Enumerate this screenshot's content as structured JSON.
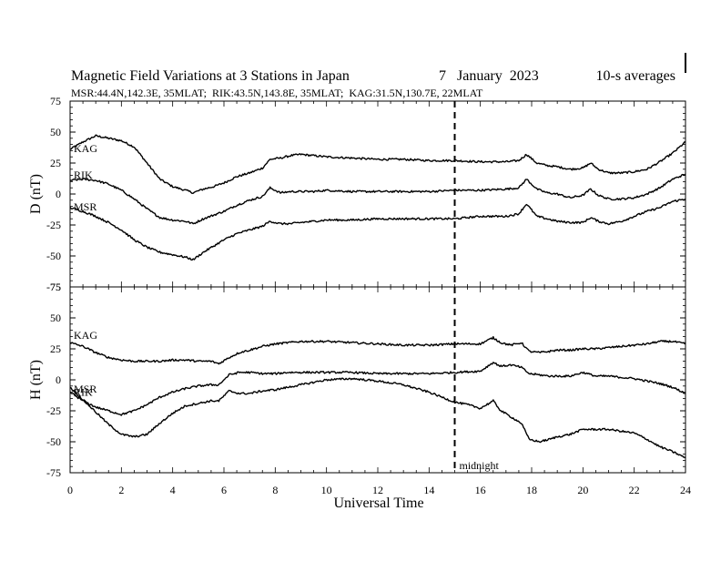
{
  "chart_data": {
    "type": "line",
    "title": "Magnetic Field Variations at 3 Stations in Japan",
    "date": "7   January  2023",
    "averaging": "10-s averages",
    "subtitle": "MSR:44.4N,142.3E, 35MLAT;  RIK:43.5N,143.8E, 35MLAT;  KAG:31.5N,130.7E, 22MLAT",
    "xlabel": "Universal Time",
    "xlim": [
      0,
      24
    ],
    "xticks": [
      "0",
      "2",
      "4",
      "6",
      "8",
      "10",
      "12",
      "14",
      "16",
      "18",
      "20",
      "22",
      "24"
    ],
    "midnight": {
      "x": 15,
      "label": "midnight"
    },
    "panels": [
      {
        "id": "D",
        "ylabel": "D (nT)",
        "ylim": [
          -75,
          75
        ],
        "yticks": [
          "75",
          "50",
          "25",
          "0",
          "-25",
          "-50",
          "-75"
        ],
        "series": [
          {
            "name": "KAG",
            "x": [
              0,
              0.5,
              1,
              1.5,
              2,
              2.5,
              3,
              3.5,
              4,
              4.5,
              4.8,
              5.2,
              5.6,
              6,
              6.5,
              7,
              7.5,
              7.8,
              8.2,
              8.6,
              9,
              9.5,
              10,
              11,
              12,
              13,
              14,
              15,
              16,
              17,
              17.5,
              17.8,
              18.2,
              18.6,
              19,
              19.5,
              20,
              20.3,
              20.6,
              21,
              21.5,
              22,
              22.5,
              23,
              23.5,
              24
            ],
            "y": [
              36,
              42,
              47,
              45,
              43,
              38,
              25,
              12,
              6,
              3,
              1,
              4,
              6,
              9,
              14,
              17,
              21,
              28,
              29,
              31,
              32,
              31,
              30,
              29,
              28,
              28,
              27,
              27,
              26,
              26,
              27,
              32,
              25,
              23,
              22,
              20,
              21,
              25,
              20,
              17,
              17,
              18,
              20,
              26,
              33,
              42
            ]
          },
          {
            "name": "RIK",
            "x": [
              0,
              0.5,
              1,
              1.5,
              2,
              2.5,
              3,
              3.5,
              4,
              4.5,
              4.8,
              5.2,
              5.6,
              6,
              6.5,
              7,
              7.5,
              7.8,
              8.2,
              8.6,
              9,
              9.5,
              10,
              11,
              12,
              13,
              14,
              15,
              16,
              17,
              17.5,
              17.8,
              18.2,
              18.6,
              19,
              19.5,
              20,
              20.3,
              20.6,
              21,
              21.5,
              22,
              22.5,
              23,
              23.5,
              24
            ],
            "y": [
              11,
              12,
              11,
              8,
              3,
              -4,
              -12,
              -19,
              -21,
              -22,
              -24,
              -20,
              -17,
              -14,
              -9,
              -5,
              -2,
              5,
              1,
              2,
              2,
              2,
              3,
              2,
              2,
              2,
              2,
              3,
              3,
              4,
              5,
              12,
              4,
              1,
              0,
              -3,
              -1,
              4,
              -1,
              -4,
              -4,
              -3,
              0,
              5,
              12,
              16
            ]
          },
          {
            "name": "MSR",
            "x": [
              0,
              0.5,
              1,
              1.5,
              2,
              2.5,
              3,
              3.5,
              4,
              4.5,
              4.8,
              5.2,
              5.6,
              6,
              6.5,
              7,
              7.5,
              7.8,
              8.2,
              8.6,
              9,
              9.5,
              10,
              11,
              12,
              13,
              14,
              15,
              16,
              17,
              17.5,
              17.8,
              18.2,
              18.6,
              19,
              19.5,
              20,
              20.3,
              20.6,
              21,
              21.5,
              22,
              22.5,
              23,
              23.5,
              24
            ],
            "y": [
              -11,
              -14,
              -18,
              -23,
              -29,
              -37,
              -43,
              -47,
              -49,
              -51,
              -53,
              -47,
              -42,
              -37,
              -32,
              -29,
              -26,
              -22,
              -24,
              -24,
              -23,
              -22,
              -21,
              -21,
              -20,
              -20,
              -20,
              -20,
              -18,
              -18,
              -16,
              -8,
              -18,
              -20,
              -22,
              -23,
              -23,
              -19,
              -22,
              -24,
              -22,
              -18,
              -14,
              -11,
              -6,
              -4
            ]
          }
        ]
      },
      {
        "id": "H",
        "ylabel": "H (nT)",
        "ylim": [
          -75,
          75
        ],
        "yticks": [
          "75",
          "50",
          "25",
          "0",
          "-25",
          "-50",
          "-75"
        ],
        "series": [
          {
            "name": "KAG",
            "x": [
              0,
              0.5,
              1,
              1.5,
              2,
              2.5,
              3,
              3.5,
              4,
              4.5,
              5,
              5.5,
              5.8,
              6.2,
              6.6,
              7,
              7.5,
              8,
              8.5,
              9,
              10,
              11,
              12,
              13,
              14,
              15,
              16,
              16.5,
              16.8,
              17.2,
              17.6,
              17.9,
              18.3,
              18.7,
              19,
              19.5,
              20,
              20.5,
              21,
              22,
              22.5,
              23,
              23.5,
              24
            ],
            "y": [
              30,
              27,
              22,
              18,
              16,
              15,
              15,
              15,
              16,
              16,
              15,
              15,
              13,
              18,
              22,
              24,
              27,
              29,
              30,
              31,
              31,
              30,
              29,
              28,
              28,
              29,
              29,
              34,
              30,
              28,
              30,
              23,
              22,
              23,
              24,
              24,
              25,
              25,
              26,
              28,
              29,
              31,
              31,
              29
            ]
          },
          {
            "name": "RIK",
            "x": [
              0,
              0.5,
              1,
              1.5,
              2,
              2.5,
              3,
              3.5,
              4,
              4.5,
              5,
              5.5,
              5.8,
              6.2,
              6.6,
              7,
              7.5,
              8,
              8.5,
              9,
              10,
              11,
              12,
              13,
              14,
              15,
              16,
              16.5,
              16.8,
              17.2,
              17.6,
              17.9,
              18.3,
              18.7,
              19,
              19.5,
              20,
              20.5,
              21,
              22,
              22.5,
              23,
              23.5,
              24
            ],
            "y": [
              -10,
              -17,
              -22,
              -25,
              -28,
              -25,
              -20,
              -14,
              -10,
              -7,
              -5,
              -4,
              -4,
              4,
              6,
              6,
              5,
              5,
              6,
              6,
              6,
              6,
              5,
              5,
              5,
              6,
              7,
              14,
              11,
              12,
              10,
              5,
              4,
              3,
              3,
              3,
              6,
              3,
              3,
              1,
              -1,
              -3,
              -6,
              -11
            ]
          },
          {
            "name": "MSR",
            "x": [
              0,
              0.5,
              1,
              1.5,
              2,
              2.5,
              3,
              3.5,
              4,
              4.5,
              5,
              5.5,
              5.8,
              6.2,
              6.6,
              7,
              7.5,
              8,
              8.5,
              9,
              10,
              11,
              12,
              13,
              14,
              15,
              15.5,
              16,
              16.5,
              16.8,
              17.2,
              17.6,
              17.9,
              18.3,
              18.7,
              19,
              19.5,
              20,
              20.5,
              21,
              22,
              22.5,
              23,
              23.5,
              24
            ],
            "y": [
              -6,
              -16,
              -26,
              -36,
              -44,
              -46,
              -44,
              -35,
              -27,
              -21,
              -19,
              -17,
              -17,
              -9,
              -11,
              -11,
              -9,
              -8,
              -6,
              -4,
              0,
              1,
              -1,
              -4,
              -10,
              -18,
              -20,
              -23,
              -17,
              -25,
              -30,
              -35,
              -48,
              -50,
              -48,
              -46,
              -44,
              -40,
              -40,
              -40,
              -43,
              -48,
              -54,
              -58,
              -63
            ]
          }
        ]
      }
    ]
  }
}
